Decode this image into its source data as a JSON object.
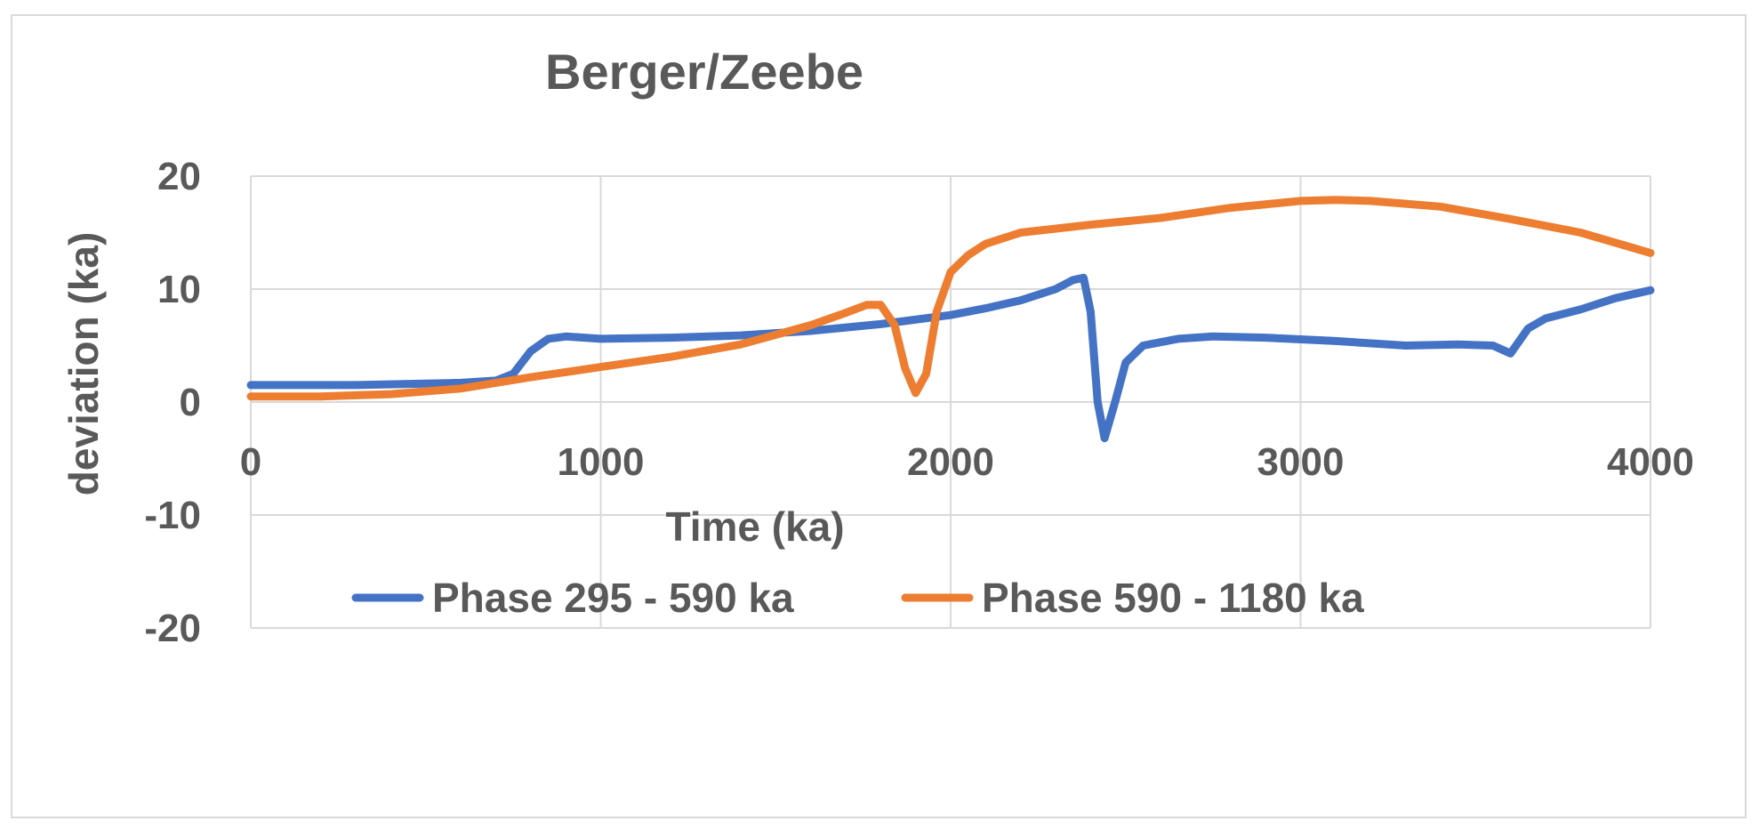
{
  "chart_data": {
    "type": "line",
    "title": "Berger/Zeebe",
    "xlabel": "Time (ka)",
    "ylabel": "deviation (ka)",
    "xlim": [
      0,
      4000
    ],
    "ylim": [
      -20,
      20
    ],
    "x_ticks": [
      "0",
      "1000",
      "2000",
      "3000",
      "4000"
    ],
    "y_ticks": [
      "20",
      "10",
      "0",
      "-10",
      "-20"
    ],
    "grid": true,
    "legend_position": "bottom",
    "series": [
      {
        "name": "Phase 295 - 590 ka",
        "color": "#4472c4",
        "points": [
          [
            0,
            1.5
          ],
          [
            300,
            1.5
          ],
          [
            600,
            1.7
          ],
          [
            700,
            1.9
          ],
          [
            750,
            2.5
          ],
          [
            800,
            4.5
          ],
          [
            850,
            5.6
          ],
          [
            900,
            5.8
          ],
          [
            1000,
            5.6
          ],
          [
            1200,
            5.7
          ],
          [
            1400,
            5.9
          ],
          [
            1600,
            6.3
          ],
          [
            1800,
            6.9
          ],
          [
            2000,
            7.7
          ],
          [
            2100,
            8.3
          ],
          [
            2200,
            9.0
          ],
          [
            2300,
            10.0
          ],
          [
            2350,
            10.8
          ],
          [
            2380,
            11.0
          ],
          [
            2400,
            8.0
          ],
          [
            2420,
            0.0
          ],
          [
            2440,
            -3.2
          ],
          [
            2470,
            0.0
          ],
          [
            2500,
            3.5
          ],
          [
            2550,
            5.0
          ],
          [
            2650,
            5.6
          ],
          [
            2750,
            5.8
          ],
          [
            2900,
            5.7
          ],
          [
            3100,
            5.4
          ],
          [
            3300,
            5.0
          ],
          [
            3450,
            5.1
          ],
          [
            3550,
            5.0
          ],
          [
            3600,
            4.3
          ],
          [
            3650,
            6.5
          ],
          [
            3700,
            7.4
          ],
          [
            3800,
            8.2
          ],
          [
            3900,
            9.2
          ],
          [
            4000,
            9.9
          ]
        ]
      },
      {
        "name": "Phase 590 - 1180 ka",
        "color": "#ed7d31",
        "points": [
          [
            0,
            0.5
          ],
          [
            200,
            0.5
          ],
          [
            400,
            0.7
          ],
          [
            600,
            1.2
          ],
          [
            800,
            2.2
          ],
          [
            1000,
            3.1
          ],
          [
            1200,
            4.0
          ],
          [
            1400,
            5.1
          ],
          [
            1600,
            6.8
          ],
          [
            1700,
            7.9
          ],
          [
            1760,
            8.6
          ],
          [
            1800,
            8.6
          ],
          [
            1840,
            6.8
          ],
          [
            1870,
            3.0
          ],
          [
            1900,
            0.8
          ],
          [
            1930,
            2.5
          ],
          [
            1960,
            8.0
          ],
          [
            2000,
            11.5
          ],
          [
            2050,
            13.0
          ],
          [
            2100,
            14.0
          ],
          [
            2200,
            15.0
          ],
          [
            2400,
            15.7
          ],
          [
            2600,
            16.3
          ],
          [
            2800,
            17.2
          ],
          [
            3000,
            17.8
          ],
          [
            3100,
            17.9
          ],
          [
            3200,
            17.8
          ],
          [
            3400,
            17.3
          ],
          [
            3600,
            16.2
          ],
          [
            3800,
            15.0
          ],
          [
            4000,
            13.2
          ]
        ]
      }
    ]
  }
}
